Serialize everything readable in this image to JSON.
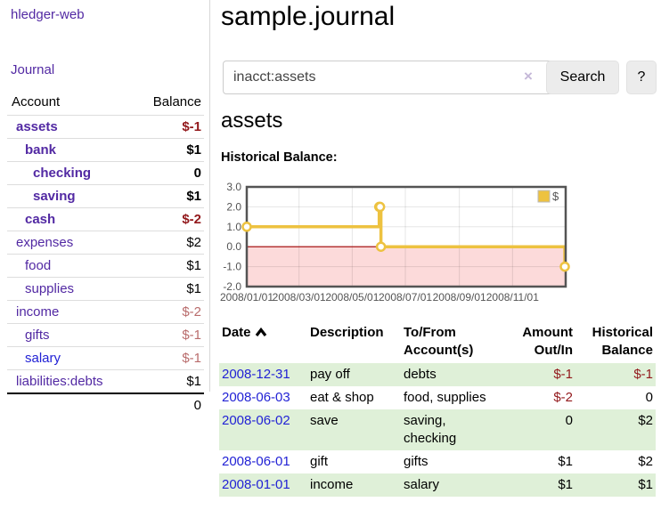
{
  "app": {
    "title": "hledger-web"
  },
  "sidebar": {
    "journal_link": "Journal",
    "headers": {
      "account": "Account",
      "balance": "Balance"
    },
    "accounts": [
      {
        "name": "assets",
        "depth": 1,
        "bold": true,
        "name_style": "purple",
        "balance": "$-1",
        "balance_style": "negdark"
      },
      {
        "name": "bank",
        "depth": 2,
        "bold": true,
        "name_style": "purple",
        "balance": "$1",
        "balance_style": ""
      },
      {
        "name": "checking",
        "depth": 3,
        "bold": true,
        "name_style": "purple",
        "balance": "0",
        "balance_style": ""
      },
      {
        "name": "saving",
        "depth": 3,
        "bold": true,
        "name_style": "purple",
        "balance": "$1",
        "balance_style": ""
      },
      {
        "name": "cash",
        "depth": 2,
        "bold": true,
        "name_style": "purple",
        "balance": "$-2",
        "balance_style": "negdark"
      },
      {
        "name": "expenses",
        "depth": 1,
        "bold": false,
        "name_style": "purple",
        "balance": "$2",
        "balance_style": ""
      },
      {
        "name": "food",
        "depth": 2,
        "bold": false,
        "name_style": "purple",
        "balance": "$1",
        "balance_style": ""
      },
      {
        "name": "supplies",
        "depth": 2,
        "bold": false,
        "name_style": "purple",
        "balance": "$1",
        "balance_style": ""
      },
      {
        "name": "income",
        "depth": 1,
        "bold": false,
        "name_style": "purple",
        "balance": "$-2",
        "balance_style": "rose"
      },
      {
        "name": "gifts",
        "depth": 2,
        "bold": false,
        "name_style": "purple",
        "balance": "$-1",
        "balance_style": "rose"
      },
      {
        "name": "salary",
        "depth": 2,
        "bold": false,
        "name_style": "blue",
        "balance": "$-1",
        "balance_style": "rose"
      },
      {
        "name": "liabilities:debts",
        "depth": 1,
        "bold": false,
        "name_style": "purple",
        "balance": "$1",
        "balance_style": ""
      }
    ],
    "total": "0"
  },
  "main": {
    "title": "sample.journal",
    "search": {
      "value": "inacct:assets",
      "clear_glyph": "×",
      "button_label": "Search",
      "help_label": "?"
    },
    "account_heading": "assets",
    "chart_heading": "Historical Balance:"
  },
  "chart_data": {
    "type": "line",
    "title": "Historical Balance",
    "series": [
      {
        "name": "$",
        "color": "#edc240",
        "points": [
          [
            "2008-01-01",
            1
          ],
          [
            "2008-06-01",
            2
          ],
          [
            "2008-06-02",
            2
          ],
          [
            "2008-06-03",
            0
          ],
          [
            "2008-12-31",
            -1
          ]
        ],
        "step": true
      }
    ],
    "x_range": [
      "2008-01-01",
      "2009-01-01"
    ],
    "x_ticks": [
      "2008/01/01",
      "2008/03/01",
      "2008/05/01",
      "2008/07/01",
      "2008/09/01",
      "2008/11/01"
    ],
    "y_ticks": [
      "3.0",
      "2.0",
      "1.0",
      "0.0",
      "-1.0",
      "-2.0"
    ],
    "ylim": [
      -2,
      3
    ],
    "grid": true,
    "legend": {
      "label": "$",
      "position": "top-right"
    },
    "negative_fill": "#fcdada",
    "zero_line_color": "#a00000",
    "border_color": "#545454",
    "axis_text_color": "#545454"
  },
  "register": {
    "headers": [
      "Date",
      "Description",
      "To/From Account(s)",
      "Amount Out/In",
      "Historical Balance"
    ],
    "rows": [
      {
        "date": "2008-12-31",
        "description": "pay off",
        "accounts": "debts",
        "amount": "$-1",
        "amount_neg": true,
        "balance": "$-1",
        "balance_neg": true
      },
      {
        "date": "2008-06-03",
        "description": "eat & shop",
        "accounts": "food, supplies",
        "amount": "$-2",
        "amount_neg": true,
        "balance": "0",
        "balance_neg": false
      },
      {
        "date": "2008-06-02",
        "description": "save",
        "accounts": "saving, checking",
        "amount": "0",
        "amount_neg": false,
        "balance": "$2",
        "balance_neg": false
      },
      {
        "date": "2008-06-01",
        "description": "gift",
        "accounts": "gifts",
        "amount": "$1",
        "amount_neg": false,
        "balance": "$2",
        "balance_neg": false
      },
      {
        "date": "2008-01-01",
        "description": "income",
        "accounts": "salary",
        "amount": "$1",
        "amount_neg": false,
        "balance": "$1",
        "balance_neg": false
      }
    ]
  }
}
